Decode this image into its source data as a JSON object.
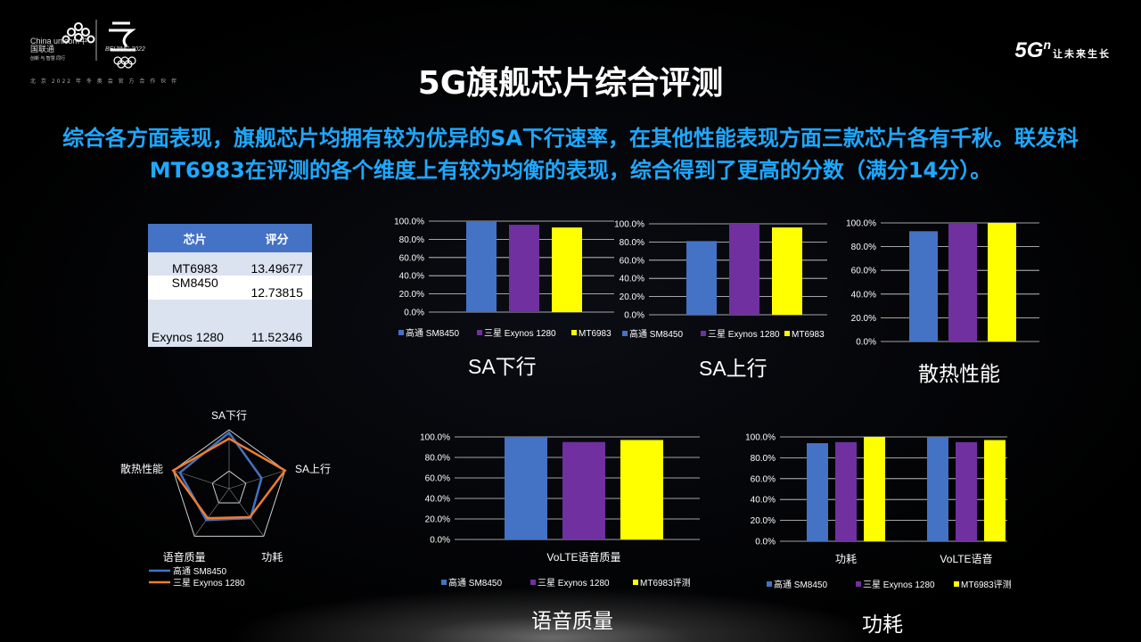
{
  "header": {
    "unicom_logo_text": "China unicom中国联通",
    "unicom_subtext": "创新 与 智慧 同行",
    "olympic_logo_text": "BEIJING 2022",
    "partner_slogan": "北 京 2022 年 冬 奥 会 官 方 合 作 伙 伴",
    "brand_5g": "5G",
    "brand_5g_sup": "n",
    "brand_tagline": "让未来生长",
    "title": "5G旗舰芯片综合评测",
    "summary": "综合各方面表现，旗舰芯片均拥有较为优异的SA下行速率，在其他性能表现方面三款芯片各有千秋。联发科MT6983在评测的各个维度上有较为均衡的表现，综合得到了更高的分数（满分14分）。"
  },
  "score_table": {
    "headers": [
      "芯片",
      "评分"
    ],
    "rows": [
      {
        "chip": "MT6983",
        "score": "13.49677"
      },
      {
        "chip": "SM8450",
        "score": "12.73815"
      },
      {
        "chip": "Exynos 1280",
        "score": "11.52346"
      }
    ]
  },
  "colors": {
    "blue": "#4472c4",
    "purple": "#7030a0",
    "yellow": "#ffff00",
    "orange": "#ed7d31",
    "grid": "#d9d9d9"
  },
  "captions": {
    "sa_down": "SA下行",
    "sa_up": "SA上行",
    "thermal": "散热性能",
    "volte": "语音质量",
    "power": "功耗"
  },
  "chart_data": [
    {
      "type": "bar",
      "categories": [
        ""
      ],
      "series": [
        {
          "name": "高通 SM8450",
          "values": [
            100
          ]
        },
        {
          "name": "三星 Exynos 1280",
          "values": [
            96
          ]
        },
        {
          "name": "MT6983",
          "values": [
            93
          ]
        }
      ],
      "ylim": [
        0,
        100
      ],
      "yticks": [
        "0.0%",
        "20.0%",
        "40.0%",
        "60.0%",
        "80.0%",
        "100.0%"
      ],
      "legend": "bottom",
      "grid": true
    },
    {
      "type": "bar",
      "categories": [
        ""
      ],
      "series": [
        {
          "name": "高通 SM8450",
          "values": [
            81
          ]
        },
        {
          "name": "三星 Exynos 1280",
          "values": [
            100
          ]
        },
        {
          "name": "MT6983",
          "values": [
            96
          ]
        }
      ],
      "ylim": [
        0,
        100
      ],
      "yticks": [
        "0.0%",
        "20.0%",
        "40.0%",
        "60.0%",
        "80.0%",
        "100.0%"
      ],
      "legend": "bottom",
      "grid": true
    },
    {
      "type": "bar",
      "categories": [
        ""
      ],
      "series": [
        {
          "name": "",
          "values": [
            93
          ]
        },
        {
          "name": "",
          "values": [
            100
          ]
        },
        {
          "name": "",
          "values": [
            100
          ]
        }
      ],
      "ylim": [
        0,
        100
      ],
      "yticks": [
        "0.0%",
        "20.0%",
        "40.0%",
        "60.0%",
        "80.0%",
        "100.0%"
      ],
      "grid": true
    },
    {
      "type": "bar",
      "categories": [
        "VoLTE语音质量"
      ],
      "series": [
        {
          "name": "高通 SM8450",
          "values": [
            100
          ]
        },
        {
          "name": "三星 Exynos 1280",
          "values": [
            95
          ]
        },
        {
          "name": "MT6983评测",
          "values": [
            97
          ]
        }
      ],
      "ylim": [
        0,
        100
      ],
      "yticks": [
        "0.0%",
        "20.0%",
        "40.0%",
        "60.0%",
        "80.0%",
        "100.0%"
      ],
      "legend": "bottom",
      "grid": true
    },
    {
      "type": "bar",
      "categories": [
        "功耗",
        "VoLTE语音"
      ],
      "series": [
        {
          "name": "高通 SM8450",
          "values": [
            94,
            100
          ]
        },
        {
          "name": "三星 Exynos 1280",
          "values": [
            95,
            95
          ]
        },
        {
          "name": "MT6983评测",
          "values": [
            100,
            97
          ]
        }
      ],
      "ylim": [
        0,
        100
      ],
      "yticks": [
        "0.0%",
        "20.0%",
        "40.0%",
        "60.0%",
        "80.0%",
        "100.0%"
      ],
      "legend": "bottom",
      "grid": true
    },
    {
      "type": "radar",
      "axes": [
        "SA下行",
        "SA上行",
        "功耗",
        "语音质量",
        "散热性能"
      ],
      "series": [
        {
          "name": "高通 SM8450",
          "values": [
            0.95,
            0.58,
            0.62,
            0.66,
            0.88
          ]
        },
        {
          "name": "三星 Exynos 1280",
          "values": [
            0.85,
            1.0,
            0.6,
            0.62,
            1.0
          ]
        }
      ],
      "legend": "bottom-left"
    }
  ]
}
